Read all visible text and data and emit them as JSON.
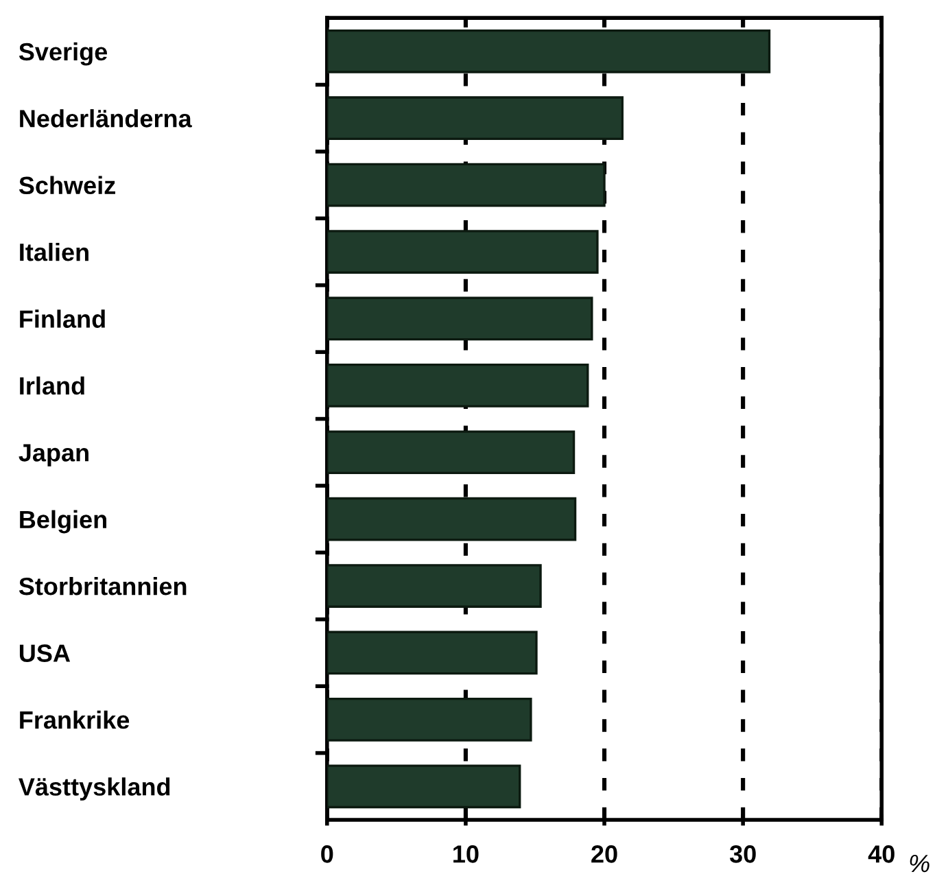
{
  "chart_data": {
    "type": "bar",
    "orientation": "horizontal",
    "categories": [
      "Sverige",
      "Nederländerna",
      "Schweiz",
      "Italien",
      "Finland",
      "Irland",
      "Japan",
      "Belgien",
      "Storbritannien",
      "USA",
      "Frankrike",
      "Västtyskland"
    ],
    "values": [
      31.9,
      21.3,
      20.0,
      19.5,
      19.1,
      18.8,
      17.8,
      17.9,
      15.4,
      15.1,
      14.7,
      13.9
    ],
    "color": "#1f3b2b",
    "xlim": [
      0,
      40
    ],
    "xticks": [
      0,
      10,
      20,
      30,
      40
    ],
    "xlabel": "%",
    "grid": "x",
    "line_style": "dashed"
  }
}
